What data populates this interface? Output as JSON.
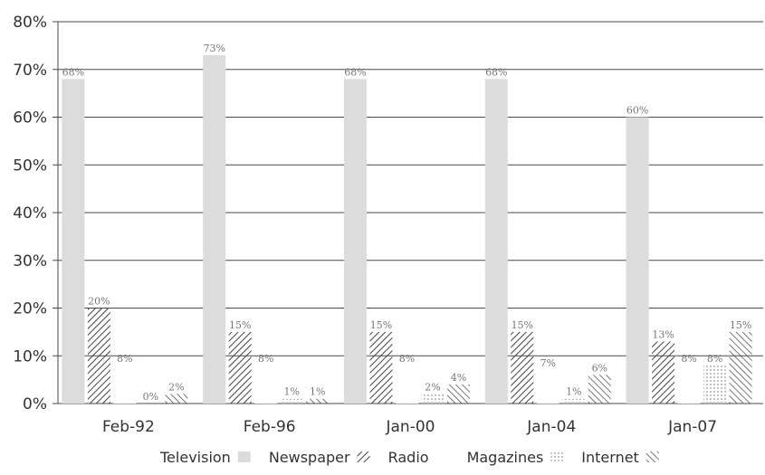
{
  "chart_data": {
    "type": "bar",
    "title": "",
    "xlabel": "",
    "ylabel": "",
    "ylim": [
      0,
      80
    ],
    "yticks": [
      "0%",
      "10%",
      "20%",
      "30%",
      "40%",
      "50%",
      "60%",
      "70%",
      "80%"
    ],
    "categories": [
      "Feb-92",
      "Feb-96",
      "Jan-00",
      "Jan-04",
      "Jan-07"
    ],
    "series": [
      {
        "name": "Television",
        "values": [
          68,
          73,
          68,
          68,
          60
        ],
        "labels": [
          "68%",
          "73%",
          "68%",
          "68%",
          "60%"
        ]
      },
      {
        "name": "Newspaper",
        "values": [
          20,
          15,
          15,
          15,
          13
        ],
        "labels": [
          "20%",
          "15%",
          "15%",
          "15%",
          "13%"
        ]
      },
      {
        "name": "Radio",
        "values": [
          8,
          8,
          8,
          7,
          8
        ],
        "labels": [
          "8%",
          "8%",
          "8%",
          "7%",
          "8%"
        ]
      },
      {
        "name": "Magazines",
        "values": [
          0,
          1,
          2,
          1,
          8
        ],
        "labels": [
          "0%",
          "1%",
          "2%",
          "1%",
          "8%"
        ]
      },
      {
        "name": "Internet",
        "values": [
          2,
          1,
          4,
          6,
          15
        ],
        "labels": [
          "2%",
          "1%",
          "4%",
          "6%",
          "15%"
        ]
      }
    ],
    "grid": true,
    "legend": "bottom",
    "colors": {
      "Television": "#dcdcdc",
      "Newspaper": "#555555",
      "Radio": "#ffffff",
      "Magazines": "#c8c8c8",
      "Internet": "#666666"
    }
  }
}
